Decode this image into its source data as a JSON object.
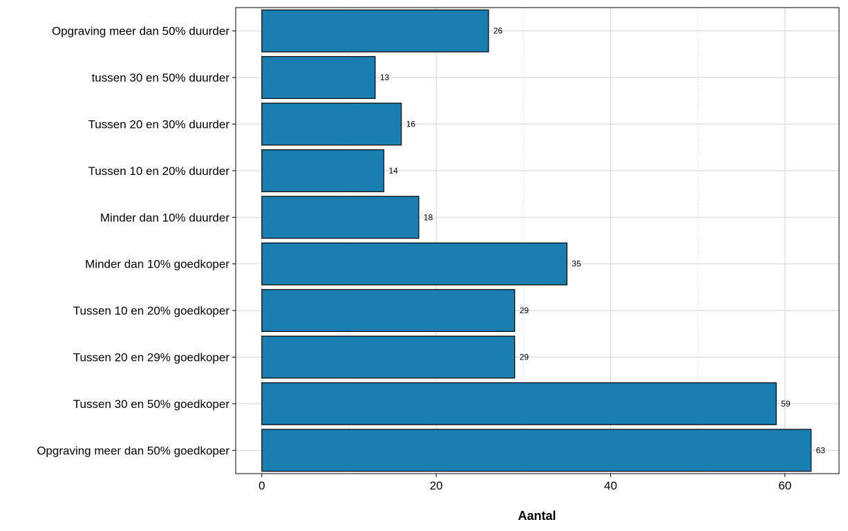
{
  "chart_data": {
    "type": "bar",
    "orientation": "horizontal",
    "categories": [
      "Opgraving meer dan 50% duurder",
      "tussen 30 en 50% duurder",
      "Tussen 20 en 30% duurder",
      "Tussen 10 en 20% duurder",
      "Minder dan 10% duurder",
      "Minder dan 10% goedkoper",
      "Tussen 10 en 20% goedkoper",
      "Tussen 20 en 29% goedkoper",
      "Tussen 30 en 50% goedkoper",
      "Opgraving meer dan 50% goedkoper"
    ],
    "values": [
      26,
      13,
      16,
      14,
      18,
      35,
      29,
      29,
      59,
      63
    ],
    "data_labels": [
      "26",
      "13",
      "16",
      "14",
      "18",
      "35",
      "29",
      "29",
      "59",
      "63"
    ],
    "xlabel": "Aantal",
    "ylabel": "",
    "xlim": [
      -3,
      66.2
    ],
    "x_ticks": [
      0,
      20,
      40,
      60
    ],
    "x_tick_labels": [
      "0",
      "20",
      "40",
      "60"
    ],
    "grid": true,
    "bar_color": "#1a7fb0",
    "bar_edge_color": "#000000"
  }
}
